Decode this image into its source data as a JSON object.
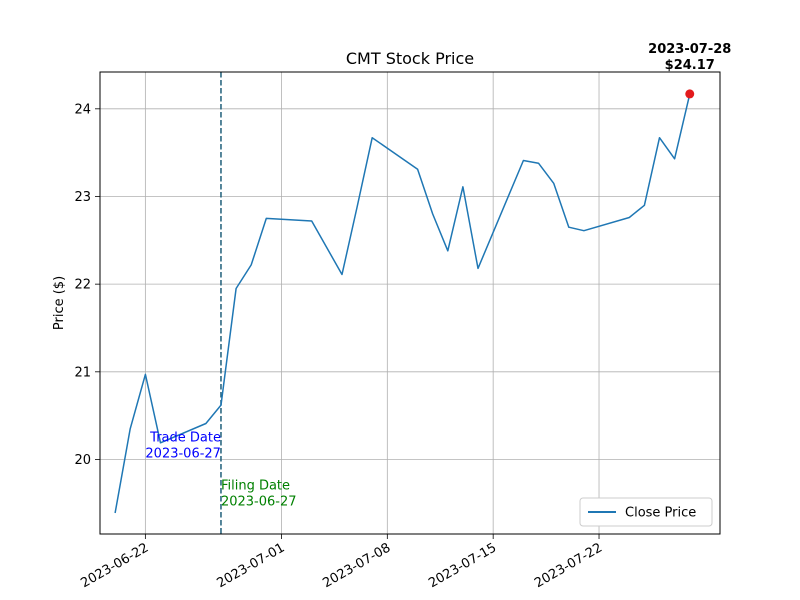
{
  "chart_data": {
    "type": "line",
    "title": "CMT Stock Price",
    "xlabel": "",
    "ylabel": "Price ($)",
    "xlim": [
      "2023-06-19",
      "2023-07-30"
    ],
    "ylim": [
      19.15,
      24.42
    ],
    "grid": true,
    "x_ticks": [
      "2023-06-22",
      "2023-07-01",
      "2023-07-08",
      "2023-07-15",
      "2023-07-22"
    ],
    "y_ticks": [
      20,
      21,
      22,
      23,
      24
    ],
    "legend": {
      "position": "lower-right",
      "entries": [
        "Close Price"
      ]
    },
    "series": [
      {
        "name": "Close Price",
        "color": "#1f77b4",
        "x": [
          "2023-06-20",
          "2023-06-21",
          "2023-06-22",
          "2023-06-23",
          "2023-06-26",
          "2023-06-27",
          "2023-06-28",
          "2023-06-29",
          "2023-06-30",
          "2023-07-03",
          "2023-07-05",
          "2023-07-06",
          "2023-07-07",
          "2023-07-10",
          "2023-07-11",
          "2023-07-12",
          "2023-07-13",
          "2023-07-14",
          "2023-07-17",
          "2023-07-18",
          "2023-07-19",
          "2023-07-20",
          "2023-07-21",
          "2023-07-24",
          "2023-07-25",
          "2023-07-26",
          "2023-07-27",
          "2023-07-28"
        ],
        "values": [
          19.39,
          20.35,
          20.97,
          20.19,
          20.41,
          20.62,
          21.95,
          22.22,
          22.75,
          22.72,
          22.11,
          22.88,
          23.67,
          23.31,
          22.8,
          22.38,
          23.11,
          22.18,
          23.41,
          23.38,
          23.15,
          22.65,
          22.61,
          22.76,
          22.9,
          23.67,
          23.43,
          24.17
        ]
      }
    ],
    "vlines": [
      {
        "x": "2023-06-27",
        "color": "#1f5f7a",
        "style": "dashed"
      }
    ],
    "annotations": [
      {
        "id": "trade",
        "text_lines": [
          "Trade Date",
          "2023-06-27"
        ],
        "x": "2023-06-27",
        "y": 20.0,
        "color": "#0000ff",
        "align": "end"
      },
      {
        "id": "filing",
        "text_lines": [
          "Filing Date",
          "2023-06-27"
        ],
        "x": "2023-06-27",
        "y": 19.45,
        "color": "#008000",
        "align": "start"
      }
    ],
    "highlight_point": {
      "x": "2023-07-28",
      "y": 24.17,
      "color": "#e31a1c",
      "label_lines": [
        "2023-07-28",
        "$24.17"
      ]
    }
  }
}
